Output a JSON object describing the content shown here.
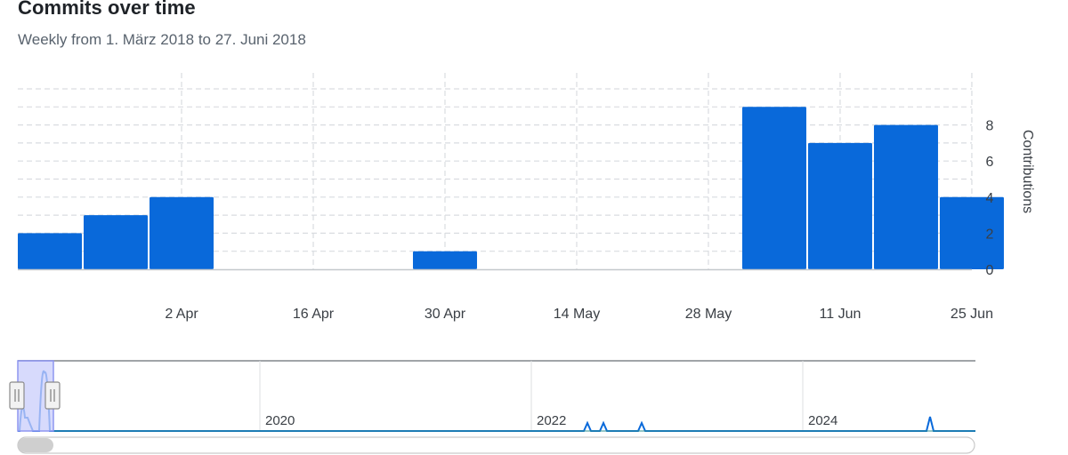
{
  "title": "Commits over time",
  "subtitle": "Weekly from 1. März 2018 to 27. Juni 2018",
  "colors": {
    "bar": "#0969da",
    "grid": "#d9dce0",
    "axis": "#c4c8cc",
    "text": "#3a3f45",
    "brush": "#c9cdfb",
    "brush_border": "#8d96f0"
  },
  "chart_data": {
    "type": "bar",
    "x_type": "date",
    "xlabel": "",
    "ylabel": "Contributions",
    "ylim": [
      0,
      10
    ],
    "y_ticks": [
      0,
      2,
      4,
      6,
      8
    ],
    "x_ticks": [
      {
        "date": "2018-04-02",
        "label": "2 Apr"
      },
      {
        "date": "2018-04-16",
        "label": "16 Apr"
      },
      {
        "date": "2018-04-30",
        "label": "30 Apr"
      },
      {
        "date": "2018-05-14",
        "label": "14 May"
      },
      {
        "date": "2018-05-28",
        "label": "28 May"
      },
      {
        "date": "2018-06-11",
        "label": "11 Jun"
      },
      {
        "date": "2018-06-25",
        "label": "25 Jun"
      }
    ],
    "grid": true,
    "series": [
      {
        "points": [
          {
            "week": "2018-03-19",
            "value": 2
          },
          {
            "week": "2018-03-26",
            "value": 3
          },
          {
            "week": "2018-04-02",
            "value": 4
          },
          {
            "week": "2018-04-09",
            "value": 0
          },
          {
            "week": "2018-04-16",
            "value": 0
          },
          {
            "week": "2018-04-23",
            "value": 0
          },
          {
            "week": "2018-04-30",
            "value": 1
          },
          {
            "week": "2018-05-07",
            "value": 0
          },
          {
            "week": "2018-05-14",
            "value": 0
          },
          {
            "week": "2018-05-21",
            "value": 0
          },
          {
            "week": "2018-05-28",
            "value": 0
          },
          {
            "week": "2018-06-04",
            "value": 9
          },
          {
            "week": "2018-06-11",
            "value": 7
          },
          {
            "week": "2018-06-18",
            "value": 8
          },
          {
            "week": "2018-06-25",
            "value": 4
          }
        ]
      }
    ],
    "navigator": {
      "year_labels": [
        "2020",
        "2022",
        "2024"
      ]
    }
  }
}
